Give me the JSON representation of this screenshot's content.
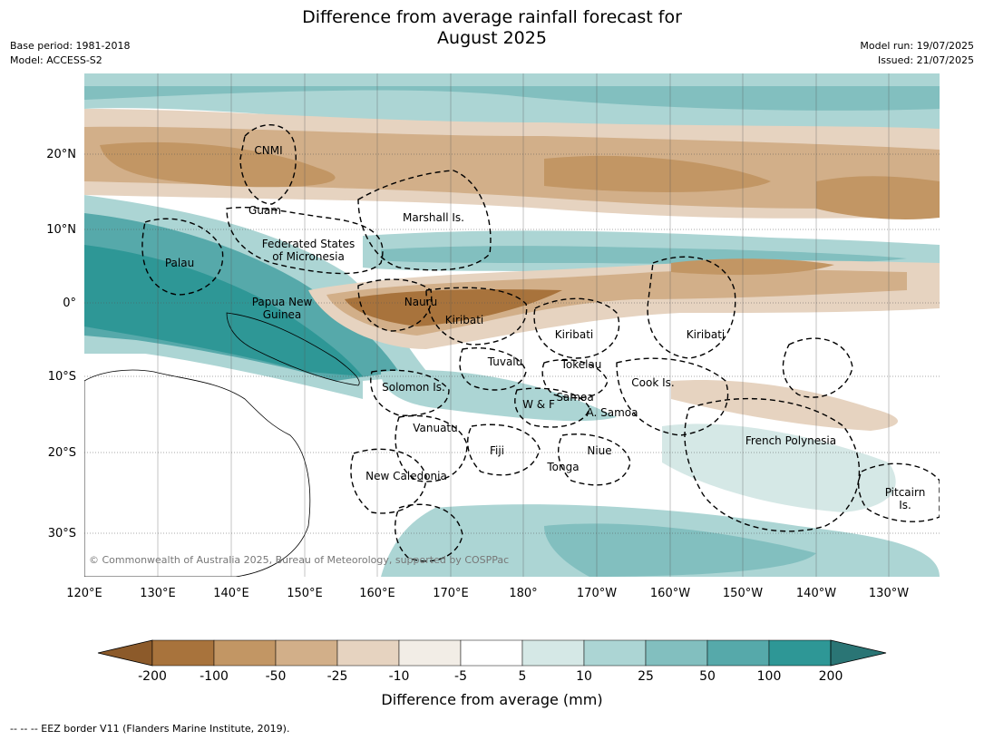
{
  "title": {
    "line1": "Difference from average rainfall forecast for",
    "line2": "August 2025"
  },
  "meta": {
    "base_period": "Base period: 1981-2018",
    "model": "Model: ACCESS-S2",
    "model_run": "Model run: 19/07/2025",
    "issued": "Issued: 21/07/2025"
  },
  "map": {
    "copyright": "© Commonwealth of Australia 2025, Bureau of Meteorology, supported by COSPPac",
    "lon_labels": [
      "120°E",
      "130°E",
      "140°E",
      "150°E",
      "160°E",
      "170°E",
      "180°",
      "170°W",
      "160°W",
      "150°W",
      "140°W",
      "130°W"
    ],
    "lat_labels": [
      "20°N",
      "10°N",
      "0°",
      "10°S",
      "20°S",
      "30°S"
    ],
    "places": [
      {
        "name": "CNMI",
        "lines": [
          "CNMI"
        ]
      },
      {
        "name": "Guam",
        "lines": [
          "Guam"
        ]
      },
      {
        "name": "Marshall Is.",
        "lines": [
          "Marshall Is."
        ]
      },
      {
        "name": "Federated States of Micronesia",
        "lines": [
          "Federated States",
          "of Micronesia"
        ]
      },
      {
        "name": "Palau",
        "lines": [
          "Palau"
        ]
      },
      {
        "name": "Papua New Guinea",
        "lines": [
          "Papua New",
          "Guinea"
        ]
      },
      {
        "name": "Nauru",
        "lines": [
          "Nauru"
        ]
      },
      {
        "name": "Kiribati (west)",
        "lines": [
          "Kiribati"
        ]
      },
      {
        "name": "Kiribati (central)",
        "lines": [
          "Kiribati"
        ]
      },
      {
        "name": "Kiribati (east)",
        "lines": [
          "Kiribati"
        ]
      },
      {
        "name": "Tuvalu",
        "lines": [
          "Tuvalu"
        ]
      },
      {
        "name": "Tokelau",
        "lines": [
          "Tokelau"
        ]
      },
      {
        "name": "Cook Is.",
        "lines": [
          "Cook Is."
        ]
      },
      {
        "name": "Solomon Is.",
        "lines": [
          "Solomon Is."
        ]
      },
      {
        "name": "Samoa",
        "lines": [
          "Samoa"
        ]
      },
      {
        "name": "W & F",
        "lines": [
          "W & F"
        ]
      },
      {
        "name": "A. Samoa",
        "lines": [
          "A. Samoa"
        ]
      },
      {
        "name": "Vanuatu",
        "lines": [
          "Vanuatu"
        ]
      },
      {
        "name": "Fiji",
        "lines": [
          "Fiji"
        ]
      },
      {
        "name": "Niue",
        "lines": [
          "Niue"
        ]
      },
      {
        "name": "Tonga",
        "lines": [
          "Tonga"
        ]
      },
      {
        "name": "French Polynesia",
        "lines": [
          "French Polynesia"
        ]
      },
      {
        "name": "New Caledonia",
        "lines": [
          "New Caledonia"
        ]
      },
      {
        "name": "Pitcairn Is.",
        "lines": [
          "Pitcairn",
          "Is."
        ]
      }
    ]
  },
  "colorbar": {
    "title": "Difference from average (mm)",
    "ticks": [
      "-200",
      "-100",
      "-50",
      "-25",
      "-10",
      "-5",
      "5",
      "10",
      "25",
      "50",
      "100",
      "200"
    ],
    "colors": {
      "below_min": "#8c5a2a",
      "b1": "#a8733c",
      "b2": "#c29664",
      "b3": "#d2af89",
      "b4": "#e6d3c0",
      "b5": "#f2ede6",
      "b6": "#ffffff",
      "b7": "#d5e8e6",
      "b8": "#acd5d4",
      "b9": "#82bfbf",
      "b10": "#56a9aa",
      "b11": "#2e9796",
      "above_max": "#2a7575"
    }
  },
  "footnote": "--  --  -- EEZ border V11 (Flanders Marine Institute, 2019)."
}
